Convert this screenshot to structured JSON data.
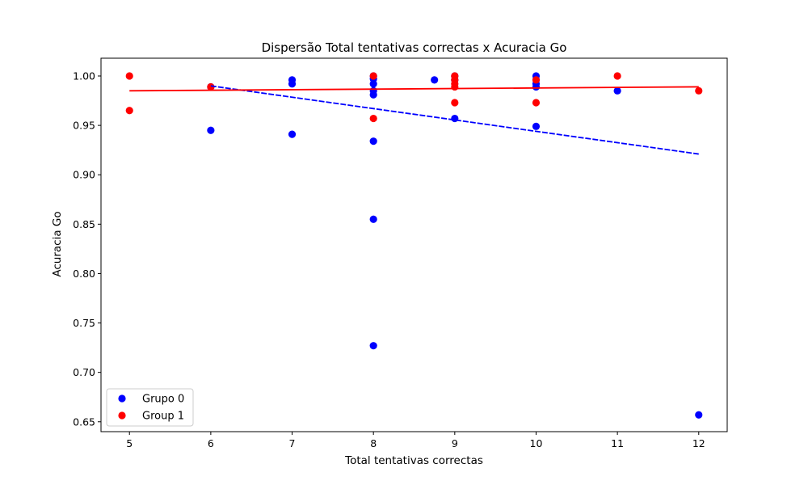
{
  "chart_data": {
    "type": "scatter",
    "title": "Dispersão Total tentativas correctas x Acuracia Go",
    "xlabel": "Total tentativas correctas",
    "ylabel": "Acuracia Go",
    "xlim": [
      4.65,
      12.35
    ],
    "ylim": [
      0.64,
      1.018
    ],
    "x_ticks": [
      5,
      6,
      7,
      8,
      9,
      10,
      11,
      12
    ],
    "y_ticks": [
      0.65,
      0.7,
      0.75,
      0.8,
      0.85,
      0.9,
      0.95,
      1.0
    ],
    "x_tick_labels": [
      "5",
      "6",
      "7",
      "8",
      "9",
      "10",
      "11",
      "12"
    ],
    "y_tick_labels": [
      "0.65",
      "0.70",
      "0.75",
      "0.80",
      "0.85",
      "0.90",
      "0.95",
      "1.00"
    ],
    "grid": false,
    "legend_position": "lower-left",
    "series": [
      {
        "name": "Grupo 0",
        "color": "#0000ff",
        "points": [
          {
            "x": 6,
            "y": 0.945
          },
          {
            "x": 6,
            "y": 0.989
          },
          {
            "x": 7,
            "y": 0.996
          },
          {
            "x": 7,
            "y": 0.992
          },
          {
            "x": 7,
            "y": 0.941
          },
          {
            "x": 8,
            "y": 1.0
          },
          {
            "x": 8,
            "y": 0.997
          },
          {
            "x": 8,
            "y": 0.992
          },
          {
            "x": 8,
            "y": 0.985
          },
          {
            "x": 8,
            "y": 0.981
          },
          {
            "x": 8,
            "y": 0.934
          },
          {
            "x": 8,
            "y": 0.855
          },
          {
            "x": 8,
            "y": 0.727
          },
          {
            "x": 8.75,
            "y": 0.996
          },
          {
            "x": 9,
            "y": 1.0
          },
          {
            "x": 9,
            "y": 0.996
          },
          {
            "x": 9,
            "y": 0.957
          },
          {
            "x": 10,
            "y": 1.0
          },
          {
            "x": 10,
            "y": 0.996
          },
          {
            "x": 10,
            "y": 0.992
          },
          {
            "x": 10,
            "y": 0.989
          },
          {
            "x": 10,
            "y": 0.949
          },
          {
            "x": 11,
            "y": 0.985
          },
          {
            "x": 12,
            "y": 0.657
          }
        ],
        "trendline": {
          "x": [
            6,
            12
          ],
          "y": [
            0.99,
            0.921
          ],
          "style": "dashed"
        }
      },
      {
        "name": "Group 1",
        "color": "#ff0000",
        "points": [
          {
            "x": 5,
            "y": 1.0
          },
          {
            "x": 5,
            "y": 0.965
          },
          {
            "x": 6,
            "y": 0.989
          },
          {
            "x": 8,
            "y": 1.0
          },
          {
            "x": 8,
            "y": 0.957
          },
          {
            "x": 9,
            "y": 1.0
          },
          {
            "x": 9,
            "y": 0.996
          },
          {
            "x": 9,
            "y": 0.992
          },
          {
            "x": 9,
            "y": 0.989
          },
          {
            "x": 9,
            "y": 0.973
          },
          {
            "x": 10,
            "y": 0.996
          },
          {
            "x": 10,
            "y": 0.973
          },
          {
            "x": 11,
            "y": 1.0
          },
          {
            "x": 12,
            "y": 0.985
          }
        ],
        "trendline": {
          "x": [
            5,
            12
          ],
          "y": [
            0.985,
            0.989
          ],
          "style": "solid"
        }
      }
    ]
  }
}
